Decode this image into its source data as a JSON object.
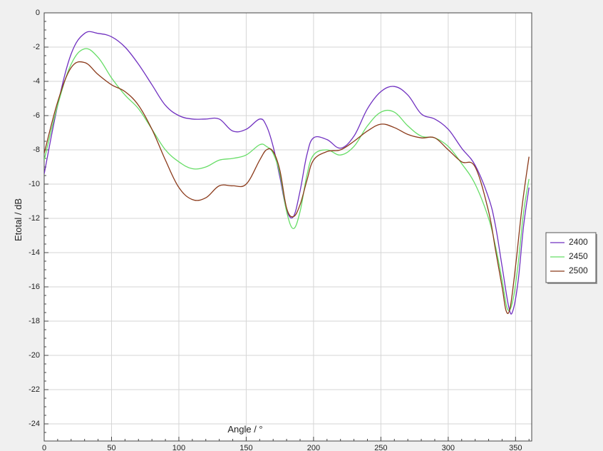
{
  "chart_data": {
    "type": "line",
    "title": "",
    "xlabel": "Angle / °",
    "ylabel": "Etotal / dB",
    "xlim": [
      0,
      362
    ],
    "ylim": [
      -25,
      0
    ],
    "xticks": [
      0,
      50,
      100,
      150,
      200,
      250,
      300,
      350
    ],
    "yticks": [
      0,
      -2,
      -4,
      -6,
      -8,
      -10,
      -12,
      -14,
      -16,
      -18,
      -20,
      -22,
      -24
    ],
    "x_tick_labels": [
      "0",
      "50",
      "100",
      "150",
      "200",
      "250",
      "300",
      "350"
    ],
    "y_tick_labels": [
      "0",
      "-2",
      "-4",
      "-6",
      "-8",
      "-10",
      "-12",
      "-14",
      "-16",
      "-18",
      "-20",
      "-22",
      "-24"
    ],
    "grid": true,
    "legend_position": "right",
    "series": [
      {
        "name": "2400",
        "color": "#7030c0",
        "x": [
          0,
          10,
          20,
          30,
          40,
          50,
          60,
          70,
          80,
          90,
          100,
          110,
          120,
          130,
          140,
          150,
          160,
          165,
          170,
          175,
          180,
          185,
          190,
          195,
          200,
          210,
          220,
          230,
          240,
          250,
          260,
          270,
          280,
          290,
          300,
          310,
          320,
          330,
          335,
          340,
          345,
          348,
          352,
          356,
          360
        ],
        "y": [
          -9.4,
          -5.4,
          -2.4,
          -1.2,
          -1.2,
          -1.4,
          -2.0,
          -3.0,
          -4.2,
          -5.4,
          -6.0,
          -6.2,
          -6.2,
          -6.2,
          -6.9,
          -6.8,
          -6.2,
          -6.6,
          -7.8,
          -9.6,
          -11.5,
          -11.9,
          -10.4,
          -8.3,
          -7.3,
          -7.4,
          -7.9,
          -7.2,
          -5.6,
          -4.6,
          -4.3,
          -4.8,
          -5.9,
          -6.2,
          -6.8,
          -7.9,
          -8.9,
          -10.8,
          -12.4,
          -14.8,
          -17.2,
          -17.4,
          -15.6,
          -12.4,
          -10.2
        ]
      },
      {
        "name": "2450",
        "color": "#66dd66",
        "x": [
          0,
          10,
          20,
          30,
          40,
          50,
          60,
          70,
          80,
          90,
          100,
          110,
          120,
          130,
          140,
          150,
          160,
          165,
          170,
          175,
          180,
          185,
          190,
          195,
          200,
          210,
          220,
          230,
          240,
          250,
          260,
          270,
          280,
          290,
          300,
          310,
          320,
          330,
          335,
          340,
          344,
          348,
          352,
          356,
          360
        ],
        "y": [
          -8.6,
          -5.4,
          -3.0,
          -2.1,
          -2.6,
          -3.8,
          -4.8,
          -5.6,
          -6.8,
          -8.0,
          -8.7,
          -9.1,
          -9.0,
          -8.6,
          -8.5,
          -8.3,
          -7.7,
          -7.8,
          -8.2,
          -9.4,
          -11.6,
          -12.6,
          -11.6,
          -9.5,
          -8.3,
          -8.0,
          -8.3,
          -7.8,
          -6.6,
          -5.8,
          -5.8,
          -6.6,
          -7.2,
          -7.3,
          -7.8,
          -8.8,
          -10.0,
          -12.0,
          -13.6,
          -15.6,
          -17.3,
          -16.8,
          -14.6,
          -11.6,
          -9.7
        ]
      },
      {
        "name": "2500",
        "color": "#8b3a1a",
        "x": [
          0,
          10,
          20,
          30,
          40,
          50,
          60,
          70,
          80,
          90,
          100,
          110,
          120,
          130,
          140,
          150,
          160,
          165,
          170,
          175,
          180,
          185,
          190,
          195,
          200,
          210,
          220,
          230,
          240,
          250,
          260,
          270,
          280,
          290,
          300,
          310,
          320,
          330,
          335,
          340,
          343,
          346,
          350,
          355,
          360
        ],
        "y": [
          -8.2,
          -5.2,
          -3.2,
          -2.9,
          -3.6,
          -4.2,
          -4.6,
          -5.4,
          -6.8,
          -8.6,
          -10.2,
          -10.9,
          -10.8,
          -10.1,
          -10.1,
          -10.0,
          -8.6,
          -8.0,
          -8.1,
          -9.2,
          -11.4,
          -11.9,
          -11.2,
          -9.8,
          -8.6,
          -8.1,
          -8.0,
          -7.5,
          -6.9,
          -6.5,
          -6.7,
          -7.1,
          -7.3,
          -7.3,
          -8.0,
          -8.7,
          -9.0,
          -11.6,
          -13.8,
          -16.0,
          -17.4,
          -17.2,
          -14.8,
          -11.2,
          -8.4
        ]
      }
    ]
  }
}
